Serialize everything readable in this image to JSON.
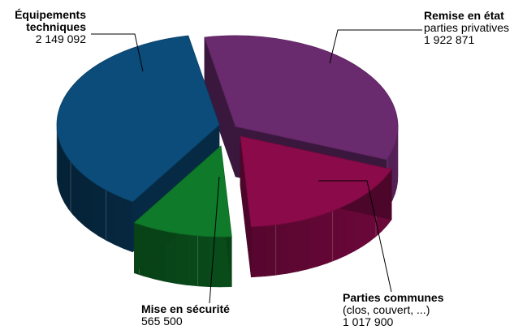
{
  "chart_data": {
    "type": "pie",
    "style": "3d-exploded",
    "slices": [
      {
        "label": "Remise en état",
        "sublabel": "parties privatives",
        "display_value": "1 922 871",
        "value": 1922871,
        "color": "#6a2a6e"
      },
      {
        "label": "Parties communes",
        "sublabel": "(clos, couvert, ...)",
        "display_value": "1 017 900",
        "value": 1017900,
        "color": "#8a0a4a"
      },
      {
        "label": "Mise en sécurité",
        "sublabel": "",
        "display_value": "565 500",
        "value": 565500,
        "color": "#0f7a2a"
      },
      {
        "label": "Équipements techniques",
        "label_lines": [
          "Équipements",
          "techniques"
        ],
        "sublabel": "",
        "display_value": "2 149 092",
        "value": 2149092,
        "color": "#0b4c7a"
      }
    ],
    "legend": "none",
    "title": ""
  }
}
